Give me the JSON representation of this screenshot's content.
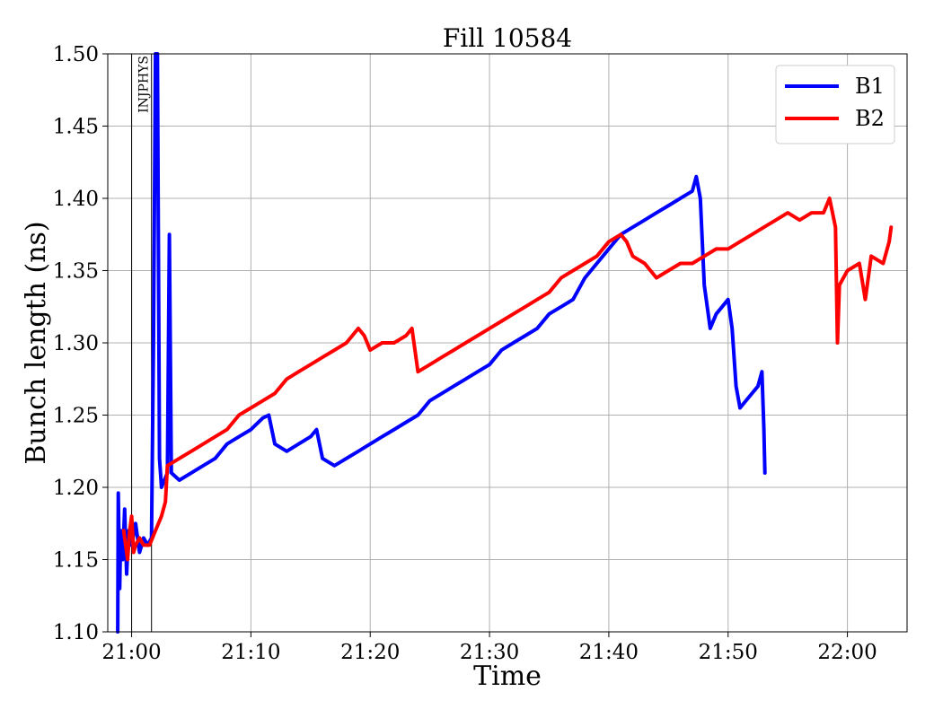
{
  "chart_data": {
    "type": "line",
    "title": "Fill 10584",
    "xlabel": "Time",
    "ylabel": "Bunch length (ns)",
    "x_unit": "time of day (HH:MM)",
    "xlim": [
      "20:58",
      "22:05"
    ],
    "ylim": [
      1.1,
      1.5
    ],
    "yticks": [
      "1.10",
      "1.15",
      "1.20",
      "1.25",
      "1.30",
      "1.35",
      "1.40",
      "1.45",
      "1.50"
    ],
    "xticks": [
      "21:00",
      "21:10",
      "21:20",
      "21:30",
      "21:40",
      "21:50",
      "22:00"
    ],
    "grid": true,
    "legend_position": "top-right",
    "markers": [
      {
        "x": "21:00:00",
        "label": ""
      },
      {
        "x": "21:01:40",
        "label": "INJPHYS"
      }
    ],
    "series": [
      {
        "name": "B1",
        "color": "#0000ff",
        "points": [
          [
            "20:58:50",
            1.1
          ],
          [
            "20:58:53",
            1.196
          ],
          [
            "20:59:00",
            1.13
          ],
          [
            "20:59:05",
            1.17
          ],
          [
            "20:59:15",
            1.15
          ],
          [
            "20:59:25",
            1.185
          ],
          [
            "20:59:35",
            1.14
          ],
          [
            "20:59:45",
            1.17
          ],
          [
            "21:00:00",
            1.16
          ],
          [
            "21:00:20",
            1.175
          ],
          [
            "21:00:40",
            1.155
          ],
          [
            "21:01:00",
            1.165
          ],
          [
            "21:01:20",
            1.16
          ],
          [
            "21:01:40",
            1.165
          ],
          [
            "21:01:50",
            1.3
          ],
          [
            "21:02:00",
            1.5
          ],
          [
            "21:02:10",
            1.5
          ],
          [
            "21:02:20",
            1.22
          ],
          [
            "21:02:30",
            1.2
          ],
          [
            "21:02:45",
            1.205
          ],
          [
            "21:03:00",
            1.21
          ],
          [
            "21:03:10",
            1.375
          ],
          [
            "21:03:20",
            1.21
          ],
          [
            "21:04:00",
            1.205
          ],
          [
            "21:05:00",
            1.21
          ],
          [
            "21:06:00",
            1.215
          ],
          [
            "21:07:00",
            1.22
          ],
          [
            "21:08:00",
            1.23
          ],
          [
            "21:09:00",
            1.235
          ],
          [
            "21:10:00",
            1.24
          ],
          [
            "21:11:00",
            1.248
          ],
          [
            "21:11:30",
            1.25
          ],
          [
            "21:12:00",
            1.23
          ],
          [
            "21:13:00",
            1.225
          ],
          [
            "21:14:00",
            1.23
          ],
          [
            "21:15:00",
            1.235
          ],
          [
            "21:15:30",
            1.24
          ],
          [
            "21:16:00",
            1.22
          ],
          [
            "21:17:00",
            1.215
          ],
          [
            "21:18:00",
            1.22
          ],
          [
            "21:19:00",
            1.225
          ],
          [
            "21:20:00",
            1.23
          ],
          [
            "21:21:00",
            1.235
          ],
          [
            "21:22:00",
            1.24
          ],
          [
            "21:23:00",
            1.245
          ],
          [
            "21:24:00",
            1.25
          ],
          [
            "21:25:00",
            1.26
          ],
          [
            "21:26:00",
            1.265
          ],
          [
            "21:27:00",
            1.27
          ],
          [
            "21:28:00",
            1.275
          ],
          [
            "21:29:00",
            1.28
          ],
          [
            "21:30:00",
            1.285
          ],
          [
            "21:31:00",
            1.295
          ],
          [
            "21:32:00",
            1.3
          ],
          [
            "21:33:00",
            1.305
          ],
          [
            "21:34:00",
            1.31
          ],
          [
            "21:35:00",
            1.32
          ],
          [
            "21:36:00",
            1.325
          ],
          [
            "21:37:00",
            1.33
          ],
          [
            "21:38:00",
            1.345
          ],
          [
            "21:39:00",
            1.355
          ],
          [
            "21:40:00",
            1.365
          ],
          [
            "21:41:00",
            1.375
          ],
          [
            "21:42:00",
            1.38
          ],
          [
            "21:43:00",
            1.385
          ],
          [
            "21:44:00",
            1.39
          ],
          [
            "21:45:00",
            1.395
          ],
          [
            "21:46:00",
            1.4
          ],
          [
            "21:47:00",
            1.405
          ],
          [
            "21:47:20",
            1.415
          ],
          [
            "21:47:40",
            1.4
          ],
          [
            "21:48:00",
            1.34
          ],
          [
            "21:48:30",
            1.31
          ],
          [
            "21:49:00",
            1.32
          ],
          [
            "21:49:30",
            1.325
          ],
          [
            "21:50:00",
            1.33
          ],
          [
            "21:50:20",
            1.31
          ],
          [
            "21:50:40",
            1.27
          ],
          [
            "21:51:00",
            1.255
          ],
          [
            "21:51:30",
            1.26
          ],
          [
            "21:52:00",
            1.265
          ],
          [
            "21:52:30",
            1.27
          ],
          [
            "21:52:50",
            1.28
          ],
          [
            "21:53:00",
            1.24
          ],
          [
            "21:53:05",
            1.21
          ]
        ]
      },
      {
        "name": "B2",
        "color": "#ff0000",
        "points": [
          [
            "20:59:20",
            1.17
          ],
          [
            "20:59:30",
            1.16
          ],
          [
            "20:59:40",
            1.15
          ],
          [
            "20:59:50",
            1.17
          ],
          [
            "21:00:00",
            1.18
          ],
          [
            "21:00:10",
            1.155
          ],
          [
            "21:00:20",
            1.16
          ],
          [
            "21:00:40",
            1.165
          ],
          [
            "21:01:00",
            1.16
          ],
          [
            "21:01:30",
            1.16
          ],
          [
            "21:02:00",
            1.17
          ],
          [
            "21:02:30",
            1.18
          ],
          [
            "21:02:50",
            1.19
          ],
          [
            "21:03:00",
            1.215
          ],
          [
            "21:04:00",
            1.22
          ],
          [
            "21:05:00",
            1.225
          ],
          [
            "21:06:00",
            1.23
          ],
          [
            "21:07:00",
            1.235
          ],
          [
            "21:08:00",
            1.24
          ],
          [
            "21:09:00",
            1.25
          ],
          [
            "21:10:00",
            1.255
          ],
          [
            "21:11:00",
            1.26
          ],
          [
            "21:12:00",
            1.265
          ],
          [
            "21:13:00",
            1.275
          ],
          [
            "21:14:00",
            1.28
          ],
          [
            "21:15:00",
            1.285
          ],
          [
            "21:16:00",
            1.29
          ],
          [
            "21:17:00",
            1.295
          ],
          [
            "21:18:00",
            1.3
          ],
          [
            "21:19:00",
            1.31
          ],
          [
            "21:19:30",
            1.305
          ],
          [
            "21:20:00",
            1.295
          ],
          [
            "21:21:00",
            1.3
          ],
          [
            "21:22:00",
            1.3
          ],
          [
            "21:23:00",
            1.305
          ],
          [
            "21:23:30",
            1.31
          ],
          [
            "21:24:00",
            1.28
          ],
          [
            "21:25:00",
            1.285
          ],
          [
            "21:26:00",
            1.29
          ],
          [
            "21:27:00",
            1.295
          ],
          [
            "21:28:00",
            1.3
          ],
          [
            "21:29:00",
            1.305
          ],
          [
            "21:30:00",
            1.31
          ],
          [
            "21:31:00",
            1.315
          ],
          [
            "21:32:00",
            1.32
          ],
          [
            "21:33:00",
            1.325
          ],
          [
            "21:34:00",
            1.33
          ],
          [
            "21:35:00",
            1.335
          ],
          [
            "21:36:00",
            1.345
          ],
          [
            "21:37:00",
            1.35
          ],
          [
            "21:38:00",
            1.355
          ],
          [
            "21:39:00",
            1.36
          ],
          [
            "21:40:00",
            1.37
          ],
          [
            "21:41:00",
            1.375
          ],
          [
            "21:41:30",
            1.37
          ],
          [
            "21:42:00",
            1.36
          ],
          [
            "21:43:00",
            1.355
          ],
          [
            "21:44:00",
            1.345
          ],
          [
            "21:45:00",
            1.35
          ],
          [
            "21:46:00",
            1.355
          ],
          [
            "21:47:00",
            1.355
          ],
          [
            "21:48:00",
            1.36
          ],
          [
            "21:49:00",
            1.365
          ],
          [
            "21:50:00",
            1.365
          ],
          [
            "21:51:00",
            1.37
          ],
          [
            "21:52:00",
            1.375
          ],
          [
            "21:53:00",
            1.38
          ],
          [
            "21:54:00",
            1.385
          ],
          [
            "21:55:00",
            1.39
          ],
          [
            "21:56:00",
            1.385
          ],
          [
            "21:57:00",
            1.39
          ],
          [
            "21:58:00",
            1.39
          ],
          [
            "21:58:30",
            1.4
          ],
          [
            "21:59:00",
            1.38
          ],
          [
            "21:59:10",
            1.3
          ],
          [
            "21:59:20",
            1.34
          ],
          [
            "22:00:00",
            1.35
          ],
          [
            "22:01:00",
            1.355
          ],
          [
            "22:01:30",
            1.33
          ],
          [
            "22:02:00",
            1.36
          ],
          [
            "22:03:00",
            1.355
          ],
          [
            "22:03:30",
            1.37
          ],
          [
            "22:03:40",
            1.38
          ]
        ]
      }
    ]
  }
}
